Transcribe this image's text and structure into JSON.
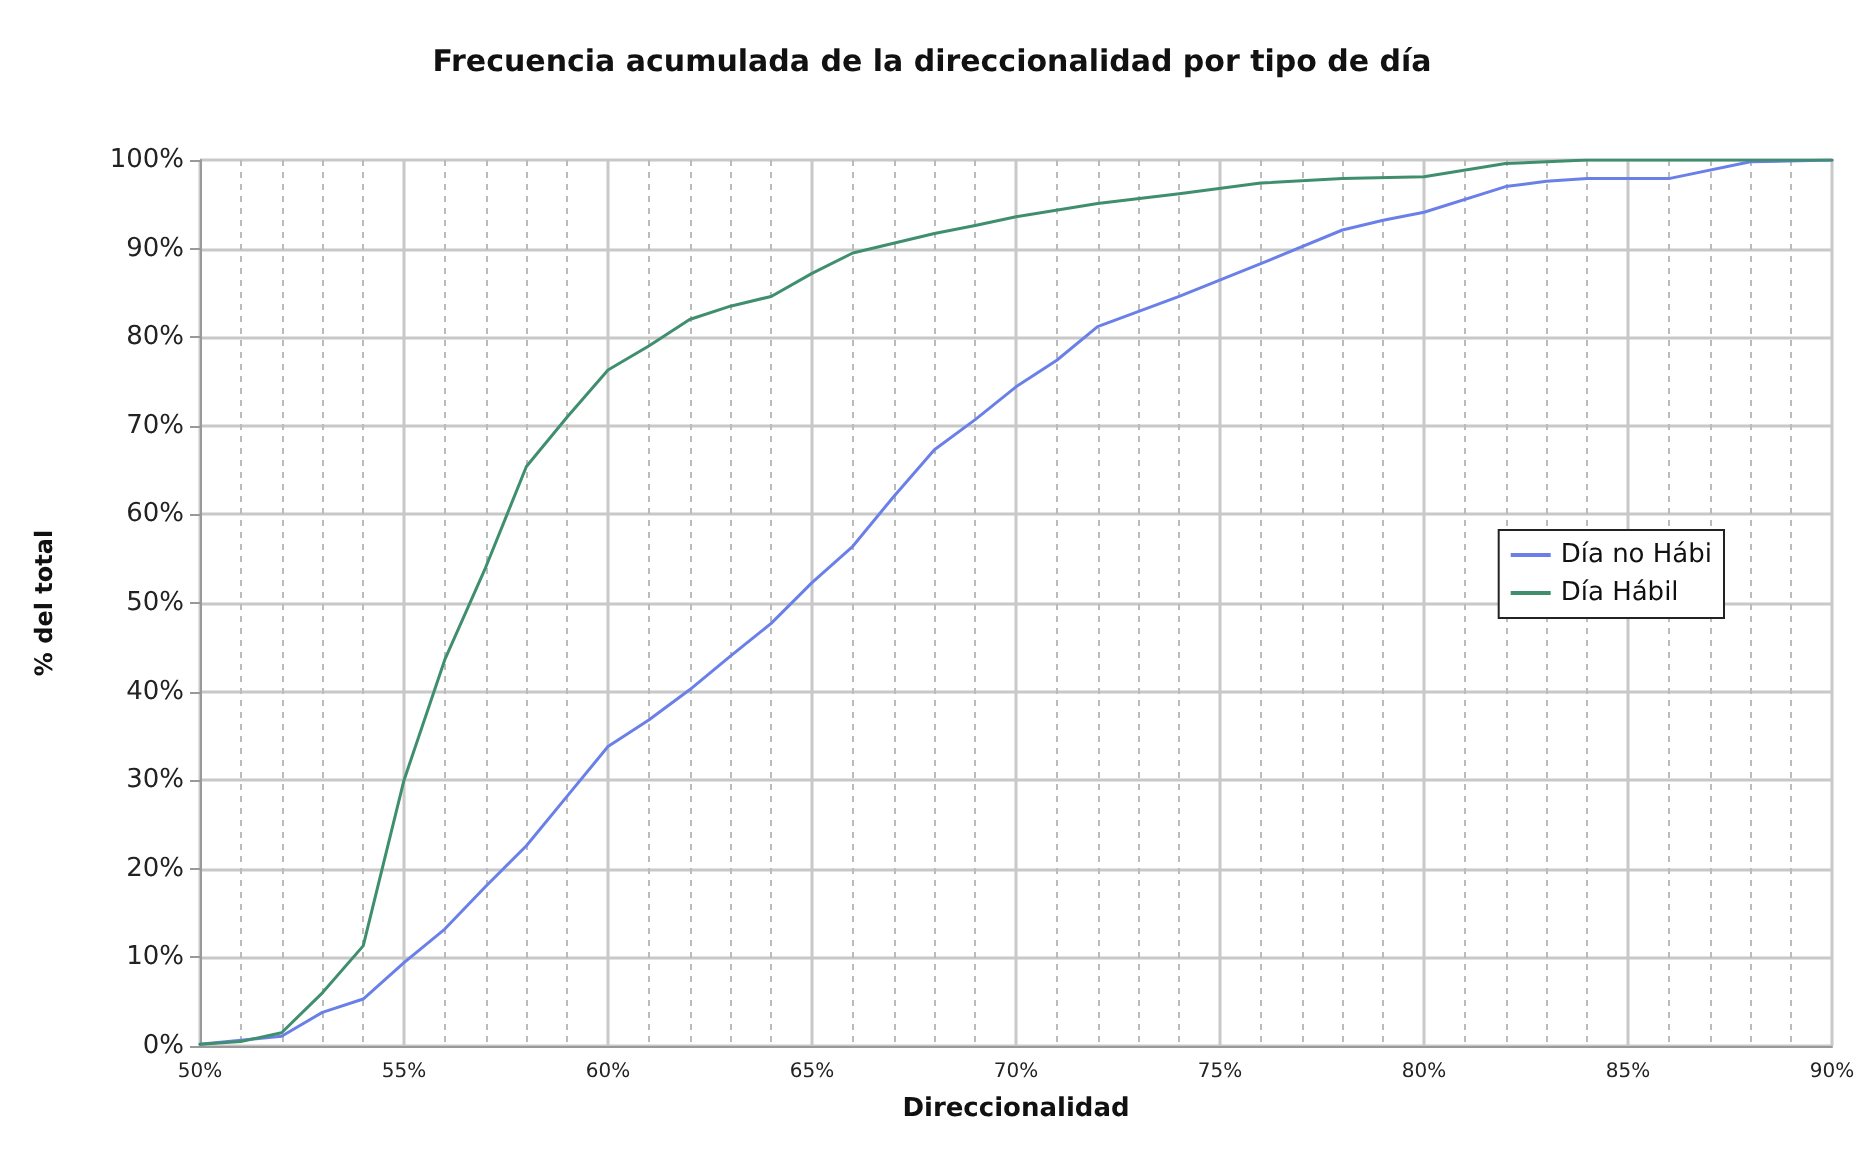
{
  "chart_data": {
    "type": "line",
    "title": "Frecuencia acumulada de la direccionalidad por tipo de día",
    "xlabel": "Direccionalidad",
    "ylabel": "% del total",
    "xlim": [
      50,
      90
    ],
    "xticks": [
      {
        "value": 50,
        "label": "50%"
      },
      {
        "value": 51,
        "label": null
      },
      {
        "value": 52,
        "label": null
      },
      {
        "value": 53,
        "label": null
      },
      {
        "value": 54,
        "label": null
      },
      {
        "value": 55,
        "label": "55%"
      },
      {
        "value": 56,
        "label": null
      },
      {
        "value": 57,
        "label": null
      },
      {
        "value": 58,
        "label": null
      },
      {
        "value": 59,
        "label": null
      },
      {
        "value": 60,
        "label": "60%"
      },
      {
        "value": 61,
        "label": null
      },
      {
        "value": 62,
        "label": null
      },
      {
        "value": 63,
        "label": null
      },
      {
        "value": 64,
        "label": null
      },
      {
        "value": 65,
        "label": "65%"
      },
      {
        "value": 66,
        "label": null
      },
      {
        "value": 67,
        "label": null
      },
      {
        "value": 68,
        "label": null
      },
      {
        "value": 69,
        "label": null
      },
      {
        "value": 70,
        "label": "70%"
      },
      {
        "value": 71,
        "label": null
      },
      {
        "value": 72,
        "label": null
      },
      {
        "value": 73,
        "label": null
      },
      {
        "value": 74,
        "label": null
      },
      {
        "value": 75,
        "label": "75%"
      },
      {
        "value": 76,
        "label": null
      },
      {
        "value": 77,
        "label": null
      },
      {
        "value": 78,
        "label": null
      },
      {
        "value": 79,
        "label": null
      },
      {
        "value": 80,
        "label": "80%"
      },
      {
        "value": 81,
        "label": null
      },
      {
        "value": 82,
        "label": null
      },
      {
        "value": 83,
        "label": null
      },
      {
        "value": 84,
        "label": null
      },
      {
        "value": 85,
        "label": "85%"
      },
      {
        "value": 86,
        "label": null
      },
      {
        "value": 87,
        "label": null
      },
      {
        "value": 88,
        "label": null
      },
      {
        "value": 89,
        "label": null
      },
      {
        "value": 90,
        "label": "90%"
      }
    ],
    "ylim": [
      0,
      100
    ],
    "yticks": [
      {
        "value": 0,
        "label": "0%"
      },
      {
        "value": 10,
        "label": "10%"
      },
      {
        "value": 20,
        "label": "20%"
      },
      {
        "value": 30,
        "label": "30%"
      },
      {
        "value": 40,
        "label": "40%"
      },
      {
        "value": 50,
        "label": "50%"
      },
      {
        "value": 60,
        "label": "60%"
      },
      {
        "value": 70,
        "label": "70%"
      },
      {
        "value": 80,
        "label": "80%"
      },
      {
        "value": 90,
        "label": "90%"
      },
      {
        "value": 100,
        "label": "100%"
      }
    ],
    "grid": true,
    "legend": "right",
    "marker": "none",
    "line_style": "solid",
    "series": [
      {
        "name": "Día no Hábi",
        "color": "#6a80e8",
        "x": [
          50,
          52,
          53,
          54,
          55,
          56,
          57,
          58,
          59,
          60,
          61,
          62,
          63,
          64,
          65,
          66,
          67,
          68,
          69,
          70,
          71,
          72,
          74,
          76,
          78,
          79,
          80,
          82,
          83,
          84,
          86,
          88,
          90
        ],
        "values": [
          0.2,
          1.1,
          3.8,
          5.3,
          9.4,
          13.2,
          18,
          22.6,
          28.2,
          33.8,
          36.8,
          40.2,
          44,
          47.7,
          52.3,
          56.4,
          62,
          67.3,
          70.7,
          74.4,
          77.4,
          81.2,
          84.6,
          88.3,
          92.1,
          93.2,
          94.1,
          97,
          97.6,
          97.9,
          97.9,
          99.8,
          100
        ]
      },
      {
        "name": "Día Hábil",
        "color": "#3f8f6f",
        "x": [
          50,
          51,
          52,
          53,
          54,
          55,
          56,
          57,
          58,
          59,
          60,
          61,
          62,
          63,
          64,
          65,
          66,
          67,
          68,
          69,
          70,
          72,
          74,
          76,
          78,
          80,
          82,
          84,
          90
        ],
        "values": [
          0.2,
          0.5,
          1.5,
          6,
          11.3,
          30,
          43.6,
          54,
          65.4,
          71,
          76.3,
          79,
          82,
          83.5,
          84.6,
          87.2,
          89.5,
          90.6,
          91.7,
          92.6,
          93.6,
          95.1,
          96.2,
          97.4,
          97.9,
          98.1,
          99.6,
          100,
          100
        ]
      }
    ]
  }
}
